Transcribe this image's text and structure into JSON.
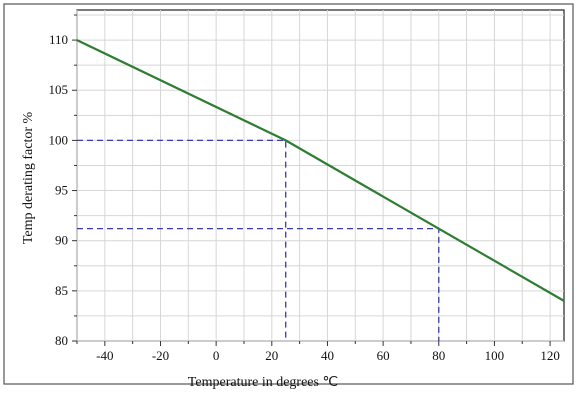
{
  "chart_data": {
    "type": "line",
    "xlabel": "Temperature in degrees ℃",
    "ylabel": "Temp derating factor  %",
    "xlim": [
      -50,
      125
    ],
    "ylim": [
      80,
      113
    ],
    "xticks": [
      -40,
      -20,
      0,
      20,
      40,
      60,
      80,
      100,
      120
    ],
    "yticks": [
      80,
      85,
      90,
      95,
      100,
      105,
      110
    ],
    "grid": true,
    "series": [
      {
        "color": "#2e7d32",
        "x": [
          -50,
          25,
          125
        ],
        "y": [
          110,
          100,
          84
        ]
      }
    ],
    "reference_points": [
      {
        "x": 25,
        "y": 100
      },
      {
        "x": 80,
        "y": 91.2
      }
    ]
  }
}
